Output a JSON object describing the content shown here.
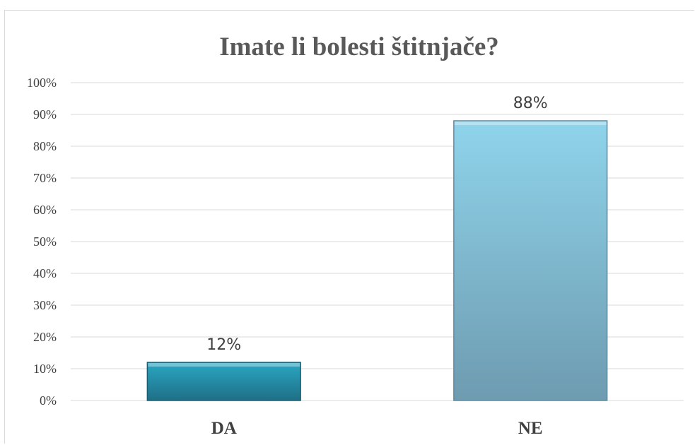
{
  "chart_data": {
    "type": "bar",
    "title": "Imate li bolesti štitnjače?",
    "categories": [
      "DA",
      "NE"
    ],
    "values": [
      12,
      88
    ],
    "data_labels": [
      "12%",
      "88%"
    ],
    "ylim": [
      0,
      100
    ],
    "yticks": [
      0,
      10,
      20,
      30,
      40,
      50,
      60,
      70,
      80,
      90,
      100
    ],
    "ytick_labels": [
      "0%",
      "10%",
      "20%",
      "30%",
      "40%",
      "50%",
      "60%",
      "70%",
      "80%",
      "90%",
      "100%"
    ],
    "grid": true,
    "legend": "none",
    "colors": {
      "DA": {
        "top": "#2aa7c4",
        "bottom": "#1f6f86",
        "edge": "#185e72"
      },
      "NE": {
        "top": "#8fd4eb",
        "bottom": "#6e9bb0",
        "edge": "#5f8aa0"
      },
      "gridline": "#d9d9d9"
    }
  }
}
